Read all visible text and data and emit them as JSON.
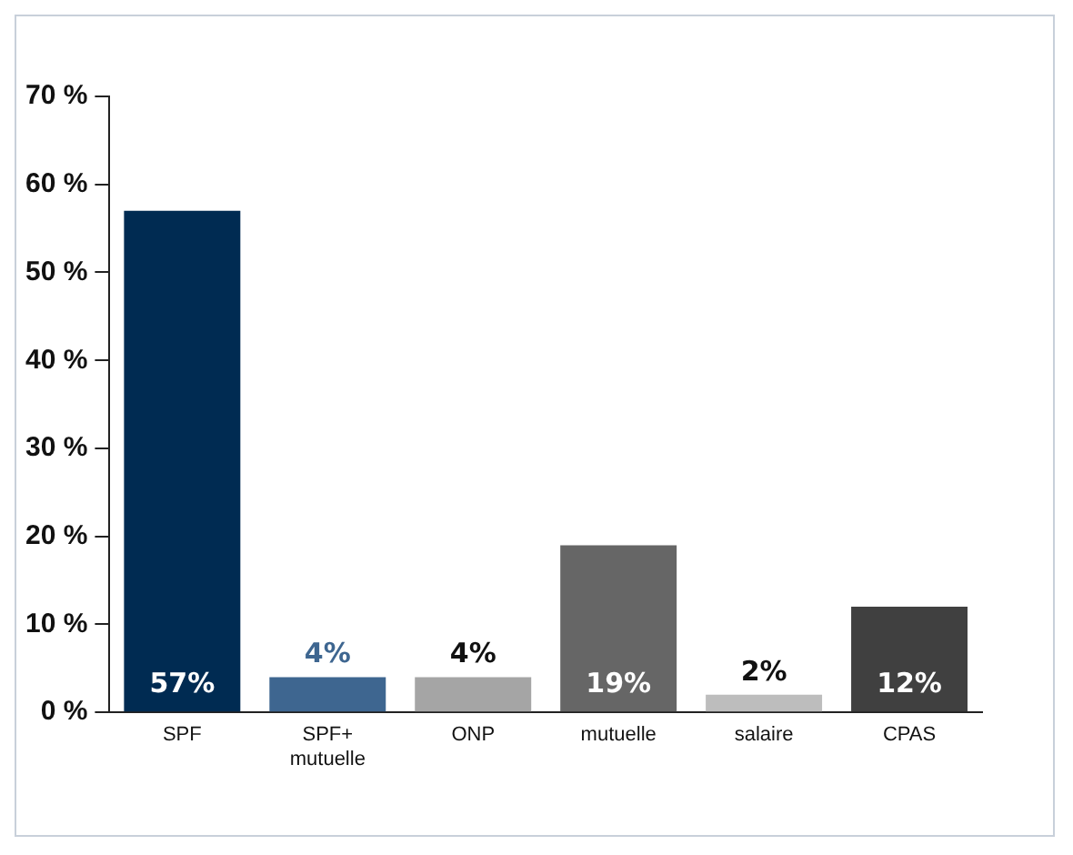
{
  "chart_data": {
    "type": "bar",
    "categories": [
      "SPF",
      "SPF+\nmutuelle",
      "ONP",
      "mutuelle",
      "salaire",
      "CPAS"
    ],
    "values": [
      57,
      4,
      4,
      19,
      2,
      12
    ],
    "colors": [
      "#002b52",
      "#3e6690",
      "#a5a5a5",
      "#666666",
      "#bdbdbd",
      "#404040"
    ],
    "ylim": [
      0,
      70
    ],
    "yticks": [
      {
        "value": 0,
        "label": "0 %"
      },
      {
        "value": 10,
        "label": "10 %"
      },
      {
        "value": 20,
        "label": "20 %"
      },
      {
        "value": 30,
        "label": "30 %"
      },
      {
        "value": 40,
        "label": "40 %"
      },
      {
        "value": 50,
        "label": "50 %"
      },
      {
        "value": 60,
        "label": "60 %"
      },
      {
        "value": 70,
        "label": "70 %"
      }
    ],
    "value_labels": [
      "57%",
      "4%",
      "4%",
      "19%",
      "2%",
      "12%"
    ],
    "grid": false,
    "legend": false
  }
}
